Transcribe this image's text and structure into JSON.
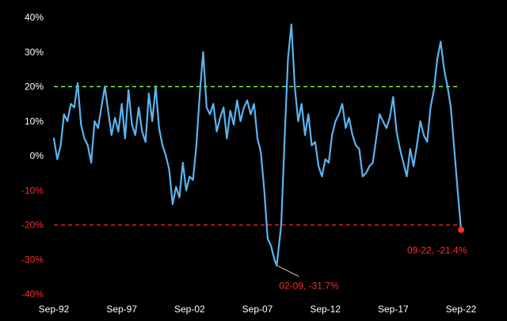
{
  "chart_data": {
    "type": "line",
    "title": "",
    "xlabel": "",
    "ylabel": "",
    "x_range": [
      "1992-09",
      "2022-09"
    ],
    "ylim": [
      -40,
      40
    ],
    "y_ticks": [
      40,
      30,
      20,
      10,
      0,
      -10,
      -20,
      -30,
      -40
    ],
    "y_tick_labels": [
      "40%",
      "30%",
      "20%",
      "10%",
      "0%",
      "-10%",
      "-20%",
      "-30%",
      "-40%"
    ],
    "x_ticks": [
      "1992-09",
      "1997-09",
      "2002-09",
      "2007-09",
      "2012-09",
      "2017-09",
      "2022-09"
    ],
    "x_tick_labels": [
      "Sep-92",
      "Sep-97",
      "Sep-02",
      "Sep-07",
      "Sep-12",
      "Sep-17",
      "Sep-22"
    ],
    "reference_lines": [
      {
        "y": 20,
        "color": "#66ff33",
        "style": "dashed"
      },
      {
        "y": -20,
        "color": "#ff1a1a",
        "style": "dashed"
      }
    ],
    "series": [
      {
        "color": "#5ab4f0",
        "points": [
          [
            "1992-09",
            5
          ],
          [
            "1992-12",
            -1
          ],
          [
            "1993-03",
            3
          ],
          [
            "1993-06",
            12
          ],
          [
            "1993-09",
            10
          ],
          [
            "1993-12",
            15
          ],
          [
            "1994-03",
            14
          ],
          [
            "1994-06",
            21
          ],
          [
            "1994-09",
            9
          ],
          [
            "1994-12",
            5
          ],
          [
            "1995-03",
            3
          ],
          [
            "1995-06",
            -2
          ],
          [
            "1995-09",
            10
          ],
          [
            "1995-12",
            8
          ],
          [
            "1996-03",
            14
          ],
          [
            "1996-06",
            20
          ],
          [
            "1996-09",
            13
          ],
          [
            "1996-12",
            6
          ],
          [
            "1997-03",
            11
          ],
          [
            "1997-06",
            7
          ],
          [
            "1997-09",
            15
          ],
          [
            "1997-12",
            5
          ],
          [
            "1998-03",
            19
          ],
          [
            "1998-06",
            9
          ],
          [
            "1998-09",
            6
          ],
          [
            "1998-12",
            14
          ],
          [
            "1999-03",
            7
          ],
          [
            "1999-06",
            4
          ],
          [
            "1999-09",
            18
          ],
          [
            "1999-12",
            10
          ],
          [
            "2000-03",
            20
          ],
          [
            "2000-06",
            8
          ],
          [
            "2000-09",
            3
          ],
          [
            "2000-12",
            0
          ],
          [
            "2001-03",
            -4
          ],
          [
            "2001-06",
            -14
          ],
          [
            "2001-09",
            -9
          ],
          [
            "2001-12",
            -12
          ],
          [
            "2002-03",
            -2
          ],
          [
            "2002-06",
            -10
          ],
          [
            "2002-09",
            -6
          ],
          [
            "2002-12",
            -7
          ],
          [
            "2003-03",
            3
          ],
          [
            "2003-06",
            18
          ],
          [
            "2003-09",
            30
          ],
          [
            "2003-12",
            14
          ],
          [
            "2004-03",
            12
          ],
          [
            "2004-06",
            15
          ],
          [
            "2004-09",
            7
          ],
          [
            "2004-12",
            11
          ],
          [
            "2005-03",
            14
          ],
          [
            "2005-06",
            5
          ],
          [
            "2005-09",
            13
          ],
          [
            "2005-12",
            9
          ],
          [
            "2006-03",
            16
          ],
          [
            "2006-06",
            10
          ],
          [
            "2006-09",
            14
          ],
          [
            "2006-12",
            16
          ],
          [
            "2007-03",
            12
          ],
          [
            "2007-06",
            15
          ],
          [
            "2007-09",
            5
          ],
          [
            "2007-12",
            1
          ],
          [
            "2008-03",
            -10
          ],
          [
            "2008-06",
            -24
          ],
          [
            "2008-09",
            -26
          ],
          [
            "2008-12",
            -30
          ],
          [
            "2009-02",
            -31.7
          ],
          [
            "2009-06",
            -20
          ],
          [
            "2009-09",
            5
          ],
          [
            "2009-12",
            28
          ],
          [
            "2010-03",
            38
          ],
          [
            "2010-06",
            20
          ],
          [
            "2010-09",
            10
          ],
          [
            "2010-12",
            15
          ],
          [
            "2011-03",
            6
          ],
          [
            "2011-06",
            12
          ],
          [
            "2011-09",
            3
          ],
          [
            "2011-12",
            4
          ],
          [
            "2012-03",
            -3
          ],
          [
            "2012-06",
            -6
          ],
          [
            "2012-09",
            -1
          ],
          [
            "2012-12",
            -2
          ],
          [
            "2013-03",
            6
          ],
          [
            "2013-06",
            10
          ],
          [
            "2013-09",
            12
          ],
          [
            "2013-12",
            15
          ],
          [
            "2014-03",
            8
          ],
          [
            "2014-06",
            11
          ],
          [
            "2014-09",
            6
          ],
          [
            "2014-12",
            3
          ],
          [
            "2015-03",
            2
          ],
          [
            "2015-06",
            -6
          ],
          [
            "2015-09",
            -5
          ],
          [
            "2015-12",
            -3
          ],
          [
            "2016-03",
            -2
          ],
          [
            "2016-06",
            5
          ],
          [
            "2016-09",
            12
          ],
          [
            "2016-12",
            10
          ],
          [
            "2017-03",
            8
          ],
          [
            "2017-06",
            11
          ],
          [
            "2017-09",
            17
          ],
          [
            "2017-12",
            7
          ],
          [
            "2018-03",
            2
          ],
          [
            "2018-06",
            -2
          ],
          [
            "2018-09",
            -6
          ],
          [
            "2018-12",
            2
          ],
          [
            "2019-03",
            -3
          ],
          [
            "2019-06",
            3
          ],
          [
            "2019-09",
            10
          ],
          [
            "2019-12",
            6
          ],
          [
            "2020-03",
            4
          ],
          [
            "2020-06",
            14
          ],
          [
            "2020-09",
            19
          ],
          [
            "2020-12",
            28
          ],
          [
            "2021-03",
            33
          ],
          [
            "2021-06",
            25
          ],
          [
            "2021-09",
            20
          ],
          [
            "2021-12",
            14
          ],
          [
            "2022-03",
            2
          ],
          [
            "2022-06",
            -10
          ],
          [
            "2022-09",
            -21.4
          ]
        ]
      }
    ],
    "annotations": [
      {
        "x": "2009-02",
        "y": -31.7,
        "label": "02-09, -31.7%",
        "color": "#ff2a2a"
      },
      {
        "x": "2022-09",
        "y": -21.4,
        "label": "09-22, -21.4%",
        "color": "#ff2a2a"
      }
    ]
  }
}
